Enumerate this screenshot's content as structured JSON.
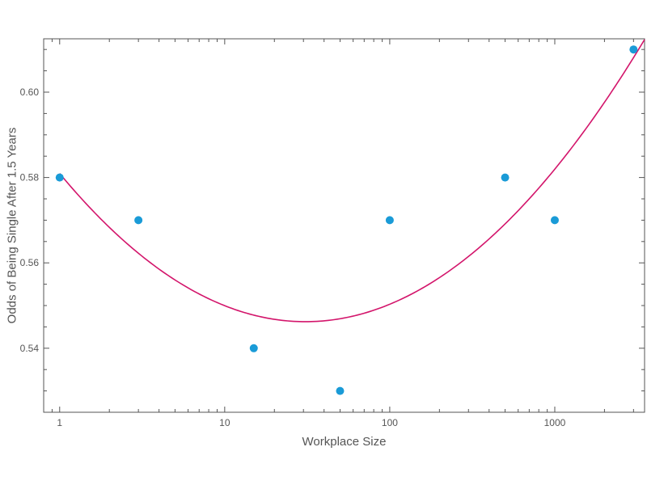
{
  "chart_data": {
    "type": "scatter",
    "xlabel": "Workplace Size",
    "ylabel": "Odds of Being Single After 1.5 Years",
    "x_scale": "log",
    "xlim": [
      0.8,
      3500
    ],
    "ylim": [
      0.525,
      0.6125
    ],
    "x_ticks": [
      {
        "value": 1,
        "label": "1"
      },
      {
        "value": 10,
        "label": "10"
      },
      {
        "value": 100,
        "label": "100"
      },
      {
        "value": 1000,
        "label": "1000"
      }
    ],
    "y_ticks": [
      {
        "value": 0.54,
        "label": "0.54"
      },
      {
        "value": 0.56,
        "label": "0.56"
      },
      {
        "value": 0.58,
        "label": "0.58"
      },
      {
        "value": 0.6,
        "label": "0.60"
      }
    ],
    "grid": false,
    "points": [
      {
        "x": 1,
        "y": 0.58
      },
      {
        "x": 3,
        "y": 0.57
      },
      {
        "x": 15,
        "y": 0.54
      },
      {
        "x": 50,
        "y": 0.53
      },
      {
        "x": 100,
        "y": 0.57
      },
      {
        "x": 500,
        "y": 0.58
      },
      {
        "x": 1000,
        "y": 0.57
      },
      {
        "x": 3000,
        "y": 0.61
      }
    ],
    "fit_curve": {
      "type": "quadratic in log10(x)",
      "points": [
        {
          "x": 1,
          "y": 0.5833
        },
        {
          "x": 3,
          "y": 0.5605
        },
        {
          "x": 10,
          "y": 0.5483
        },
        {
          "x": 24,
          "y": 0.5449
        },
        {
          "x": 100,
          "y": 0.5515
        },
        {
          "x": 500,
          "y": 0.5708
        },
        {
          "x": 1000,
          "y": 0.5843
        },
        {
          "x": 3500,
          "y": 0.6097
        }
      ]
    },
    "colors": {
      "points": "#1a9bd7",
      "curve": "#d3156b",
      "axis": "#555555"
    }
  }
}
